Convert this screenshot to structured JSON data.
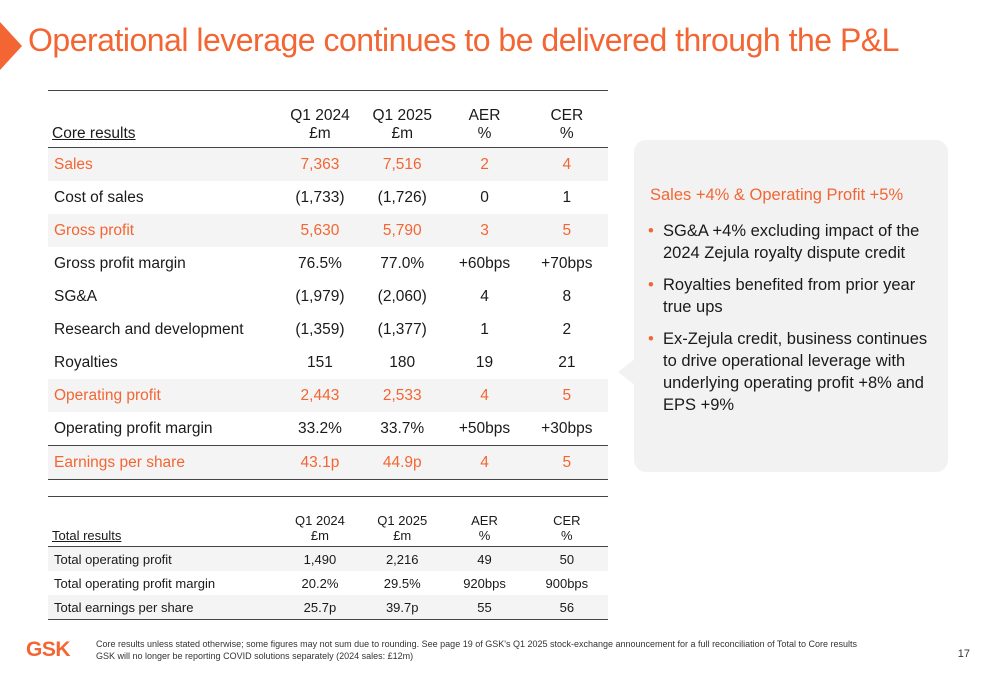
{
  "title": "Operational leverage continues to be delivered through the P&L",
  "core_table": {
    "columns": [
      {
        "line1": "",
        "line2": "Core results"
      },
      {
        "line1": "Q1 2024",
        "line2": "£m"
      },
      {
        "line1": "Q1 2025",
        "line2": "£m"
      },
      {
        "line1": "AER",
        "line2": "%"
      },
      {
        "line1": "CER",
        "line2": "%"
      }
    ],
    "rows": [
      {
        "label": "Sales",
        "q1_2024": "7,363",
        "q1_2025": "7,516",
        "aer": "2",
        "cer": "4",
        "highlight": true
      },
      {
        "label": "Cost of sales",
        "q1_2024": "(1,733)",
        "q1_2025": "(1,726)",
        "aer": "0",
        "cer": "1",
        "highlight": false
      },
      {
        "label": "Gross profit",
        "q1_2024": "5,630",
        "q1_2025": "5,790",
        "aer": "3",
        "cer": "5",
        "highlight": true
      },
      {
        "label": "Gross profit margin",
        "q1_2024": "76.5%",
        "q1_2025": "77.0%",
        "aer": "+60bps",
        "cer": "+70bps",
        "highlight": false
      },
      {
        "label": "SG&A",
        "q1_2024": "(1,979)",
        "q1_2025": "(2,060)",
        "aer": "4",
        "cer": "8",
        "highlight": false
      },
      {
        "label": "Research and development",
        "q1_2024": "(1,359)",
        "q1_2025": "(1,377)",
        "aer": "1",
        "cer": "2",
        "highlight": false
      },
      {
        "label": "Royalties",
        "q1_2024": "151",
        "q1_2025": "180",
        "aer": "19",
        "cer": "21",
        "highlight": false
      },
      {
        "label": "Operating profit",
        "q1_2024": "2,443",
        "q1_2025": "2,533",
        "aer": "4",
        "cer": "5",
        "highlight": true
      },
      {
        "label": "Operating profit margin",
        "q1_2024": "33.2%",
        "q1_2025": "33.7%",
        "aer": "+50bps",
        "cer": "+30bps",
        "highlight": false
      },
      {
        "label": "Earnings per share",
        "q1_2024": "43.1p",
        "q1_2025": "44.9p",
        "aer": "4",
        "cer": "5",
        "highlight": true
      }
    ]
  },
  "total_table": {
    "columns": [
      {
        "line1": "",
        "line2": "Total results"
      },
      {
        "line1": "Q1 2024",
        "line2": "£m"
      },
      {
        "line1": "Q1 2025",
        "line2": "£m"
      },
      {
        "line1": "AER",
        "line2": "%"
      },
      {
        "line1": "CER",
        "line2": "%"
      }
    ],
    "rows": [
      {
        "label": "Total operating profit",
        "q1_2024": "1,490",
        "q1_2025": "2,216",
        "aer": "49",
        "cer": "50"
      },
      {
        "label": "Total operating profit margin",
        "q1_2024": "20.2%",
        "q1_2025": "29.5%",
        "aer": "920bps",
        "cer": "900bps"
      },
      {
        "label": "Total earnings per share",
        "q1_2024": "25.7p",
        "q1_2025": "39.7p",
        "aer": "55",
        "cer": "56"
      }
    ]
  },
  "callout": {
    "heading": "Sales +4% & Operating Profit +5%",
    "bullets": [
      "SG&A +4% excluding impact of the 2024 Zejula royalty dispute credit",
      "Royalties benefited from prior year true ups",
      "Ex-Zejula credit, business continues to drive operational leverage with underlying operating profit +8% and EPS +9%"
    ],
    "bullet_glyph": "•"
  },
  "footer": {
    "logo": "GSK",
    "notes": [
      "Core results unless stated otherwise; some figures may not sum due to rounding. See page 19 of GSK's Q1 2025 stock-exchange announcement for a full reconciliation of Total to Core results",
      "GSK will no longer be reporting COVID solutions separately (2024 sales: £12m)"
    ],
    "page_number": "17"
  },
  "colors": {
    "accent": "#f36633",
    "row_shade": "#f4f4f4",
    "callout_bg": "#f2f2f2"
  }
}
